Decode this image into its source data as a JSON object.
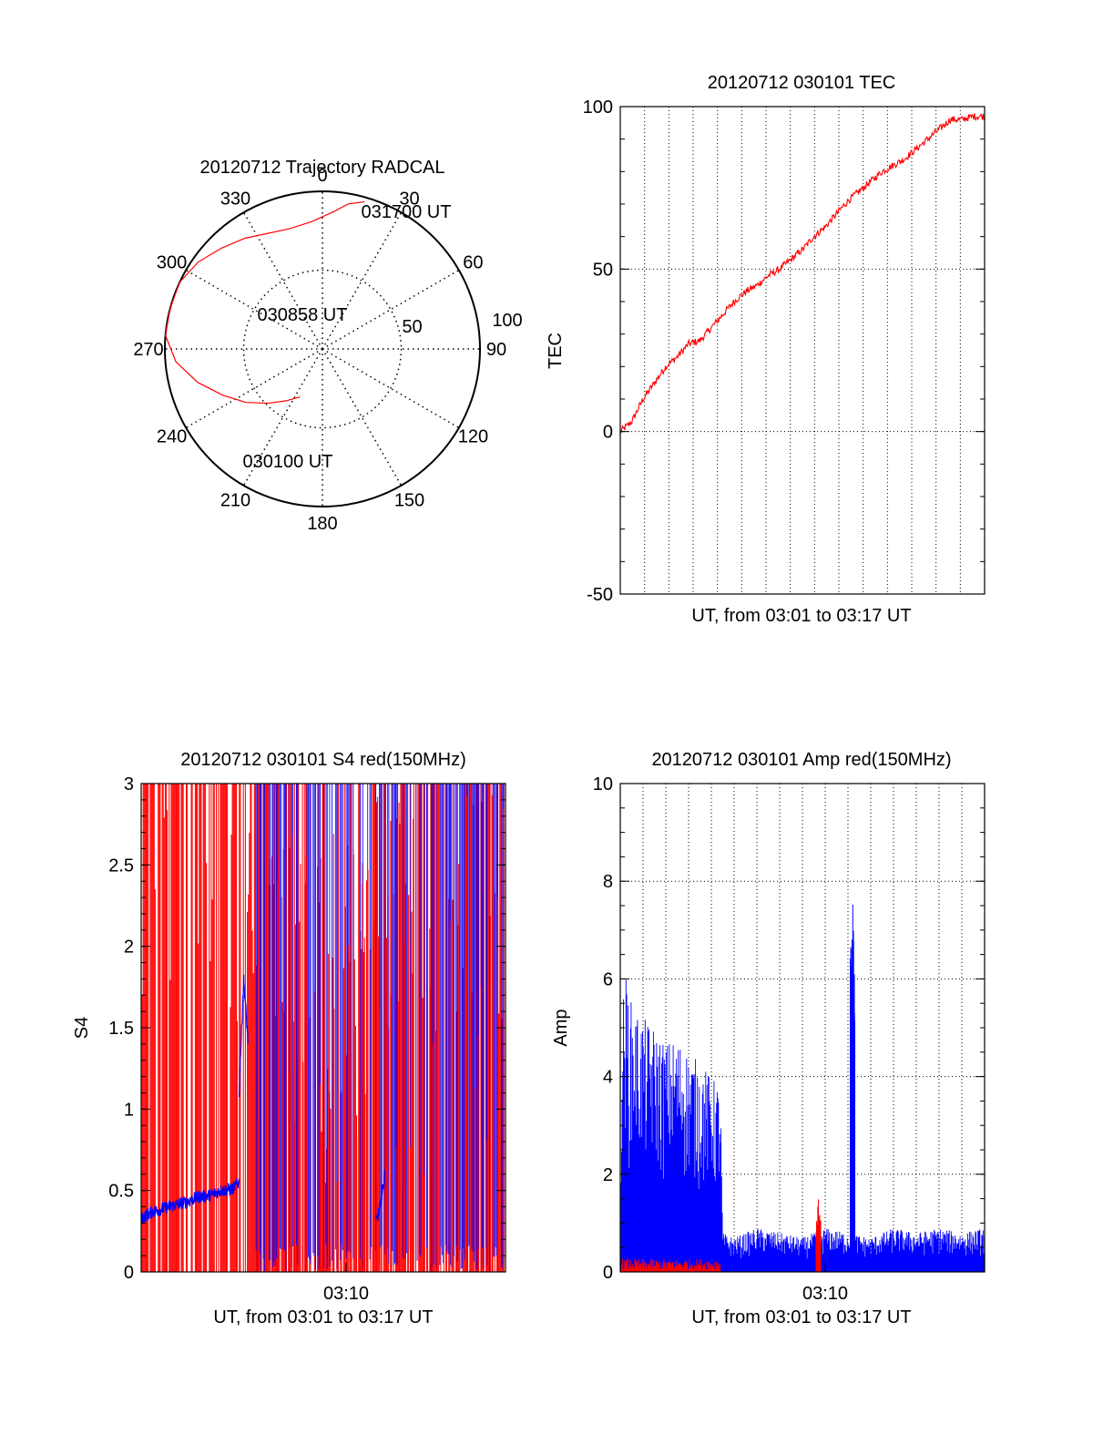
{
  "colors": {
    "red": "#ff0000",
    "blue": "#0000ff",
    "axis": "#000000",
    "grid": "#000000",
    "background": "#ffffff"
  },
  "chart_data": [
    {
      "id": "polar",
      "type": "scatter",
      "subtype": "polar-trajectory",
      "title": "20120712 Trajectory RADCAL",
      "azimuth_labels": [
        "0",
        "30",
        "60",
        "90",
        "120",
        "150",
        "180",
        "210",
        "240",
        "270",
        "300",
        "330"
      ],
      "radial_labels": [
        "50",
        "100"
      ],
      "radial_max": 100,
      "grid": true,
      "series": [
        {
          "color": "red",
          "points": [
            [
              205,
              30
            ],
            [
              215,
              37
            ],
            [
              225,
              46
            ],
            [
              235,
              57
            ],
            [
              245,
              68
            ],
            [
              255,
              81
            ],
            [
              265,
              93
            ],
            [
              275,
              100
            ],
            [
              285,
              100
            ],
            [
              295,
              100
            ],
            [
              305,
              96
            ],
            [
              315,
              90
            ],
            [
              325,
              85
            ],
            [
              335,
              80
            ],
            [
              345,
              78
            ],
            [
              355,
              80
            ],
            [
              5,
              87
            ],
            [
              10,
              93
            ],
            [
              16,
              97
            ]
          ]
        }
      ],
      "annotations": [
        {
          "text": "031700 UT",
          "azimuth": 16,
          "radius": 97
        },
        {
          "text": "030858 UT",
          "azimuth": 275,
          "radius": 100
        },
        {
          "text": "030100 UT",
          "azimuth": 205,
          "radius": 30
        }
      ]
    },
    {
      "id": "tec",
      "type": "line",
      "title": "20120712 030101 TEC",
      "xlabel": "UT, from 03:01 to 03:17 UT",
      "ylabel": "TEC",
      "xlim": [
        0,
        16
      ],
      "ylim": [
        -50,
        100
      ],
      "yticks": [
        "-50",
        "0",
        "50",
        "100"
      ],
      "grid": true,
      "series": [
        {
          "color": "red",
          "x": [
            0,
            0.5,
            1,
            1.5,
            2,
            2.5,
            3,
            3.5,
            4,
            4.5,
            5,
            5.5,
            6,
            6.5,
            7,
            7.5,
            8,
            8.5,
            9,
            9.5,
            10,
            10.5,
            11,
            11.5,
            12,
            12.5,
            13,
            13.5,
            14,
            14.5,
            15,
            15.5,
            16
          ],
          "y": [
            0,
            3,
            10,
            15,
            20,
            23,
            27,
            28,
            32,
            36,
            40,
            43,
            45,
            48,
            50,
            53,
            56,
            60,
            63,
            67,
            71,
            74,
            77,
            80,
            82,
            84,
            87,
            90,
            93,
            96,
            96,
            97,
            97
          ]
        }
      ]
    },
    {
      "id": "s4",
      "type": "line",
      "title": "20120712 030101 S4 red(150MHz)",
      "xlabel": "UT, from 03:01 to 03:17 UT",
      "ylabel": "S4",
      "xlim": [
        0,
        16
      ],
      "ylim": [
        0,
        3
      ],
      "xticks": [
        "03:10"
      ],
      "yticks": [
        "0",
        "0.5",
        "1",
        "1.5",
        "2",
        "2.5",
        "3"
      ],
      "grid": false,
      "series": [
        {
          "color": "blue",
          "x": [
            0,
            0.5,
            1,
            1.5,
            2,
            2.5,
            3,
            3.5,
            4,
            4.3
          ],
          "y": [
            0.33,
            0.37,
            0.39,
            0.41,
            0.43,
            0.46,
            0.47,
            0.5,
            0.51,
            0.55
          ]
        },
        {
          "color": "blue",
          "x": [
            4.3,
            4.5,
            4.7
          ],
          "y": [
            1.1,
            1.8,
            1.4
          ]
        },
        {
          "color": "blue",
          "x": [
            10.3,
            10.5,
            10.7
          ],
          "y": [
            0.3,
            0.4,
            0.6
          ]
        }
      ]
    },
    {
      "id": "amp",
      "type": "line",
      "title": "20120712 030101 Amp red(150MHz)",
      "xlabel": "UT, from 03:01 to 03:17 UT",
      "ylabel": "Amp",
      "xlim": [
        0,
        16
      ],
      "ylim": [
        0,
        10
      ],
      "xticks": [
        "03:10"
      ],
      "yticks": [
        "0",
        "2",
        "4",
        "6",
        "8",
        "10"
      ],
      "grid": true,
      "series": [
        {
          "color": "blue",
          "x": [
            0,
            0.2,
            0.5,
            1,
            1.5,
            2,
            2.5,
            3,
            3.5,
            4,
            4.4,
            4.5,
            5,
            6,
            7,
            8,
            9,
            10,
            11,
            12,
            13,
            14,
            15,
            16
          ],
          "y": [
            4.5,
            6.2,
            5.5,
            5.2,
            5.0,
            4.7,
            4.8,
            4.5,
            4.3,
            4.0,
            3.8,
            0.8,
            0.7,
            0.9,
            0.8,
            0.7,
            0.9,
            0.8,
            0.7,
            0.9,
            0.8,
            0.9,
            0.8,
            0.9
          ]
        },
        {
          "color": "blue",
          "x": [
            10.1,
            10.2,
            10.3
          ],
          "y": [
            6.5,
            7.8,
            6.0
          ]
        },
        {
          "color": "red",
          "x": [
            8.6,
            8.7,
            8.8
          ],
          "y": [
            1.0,
            1.5,
            1.1
          ]
        }
      ]
    }
  ]
}
